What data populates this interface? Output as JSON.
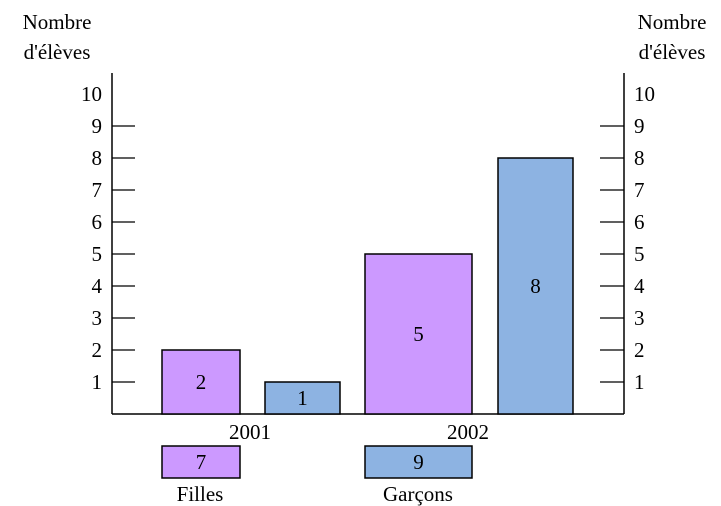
{
  "chart_data": {
    "type": "bar",
    "ylabel_left": [
      "Nombre",
      "d'élèves"
    ],
    "ylabel_right": [
      "Nombre",
      "d'élèves"
    ],
    "yticks": [
      1,
      2,
      3,
      4,
      5,
      6,
      7,
      8,
      9,
      10
    ],
    "ylim": [
      0,
      10
    ],
    "categories": [
      "2001",
      "2002"
    ],
    "series": [
      {
        "name": "Filles",
        "values": [
          2,
          5
        ],
        "color": "#cc99ff"
      },
      {
        "name": "Garçons",
        "values": [
          1,
          8
        ],
        "color": "#8db3e2"
      }
    ],
    "bar_order": [
      {
        "category": "2001",
        "series": "Filles"
      },
      {
        "category": "2001",
        "series": "Garçons"
      },
      {
        "category": "2002",
        "series": "Filles"
      },
      {
        "category": "2002",
        "series": "Garçons"
      }
    ],
    "legend": {
      "placement": "bottom",
      "items": [
        {
          "label": "Filles",
          "value": 7,
          "color": "#cc99ff"
        },
        {
          "label": "Garçons",
          "value": 9,
          "color": "#8db3e2"
        }
      ]
    },
    "grid": false
  }
}
